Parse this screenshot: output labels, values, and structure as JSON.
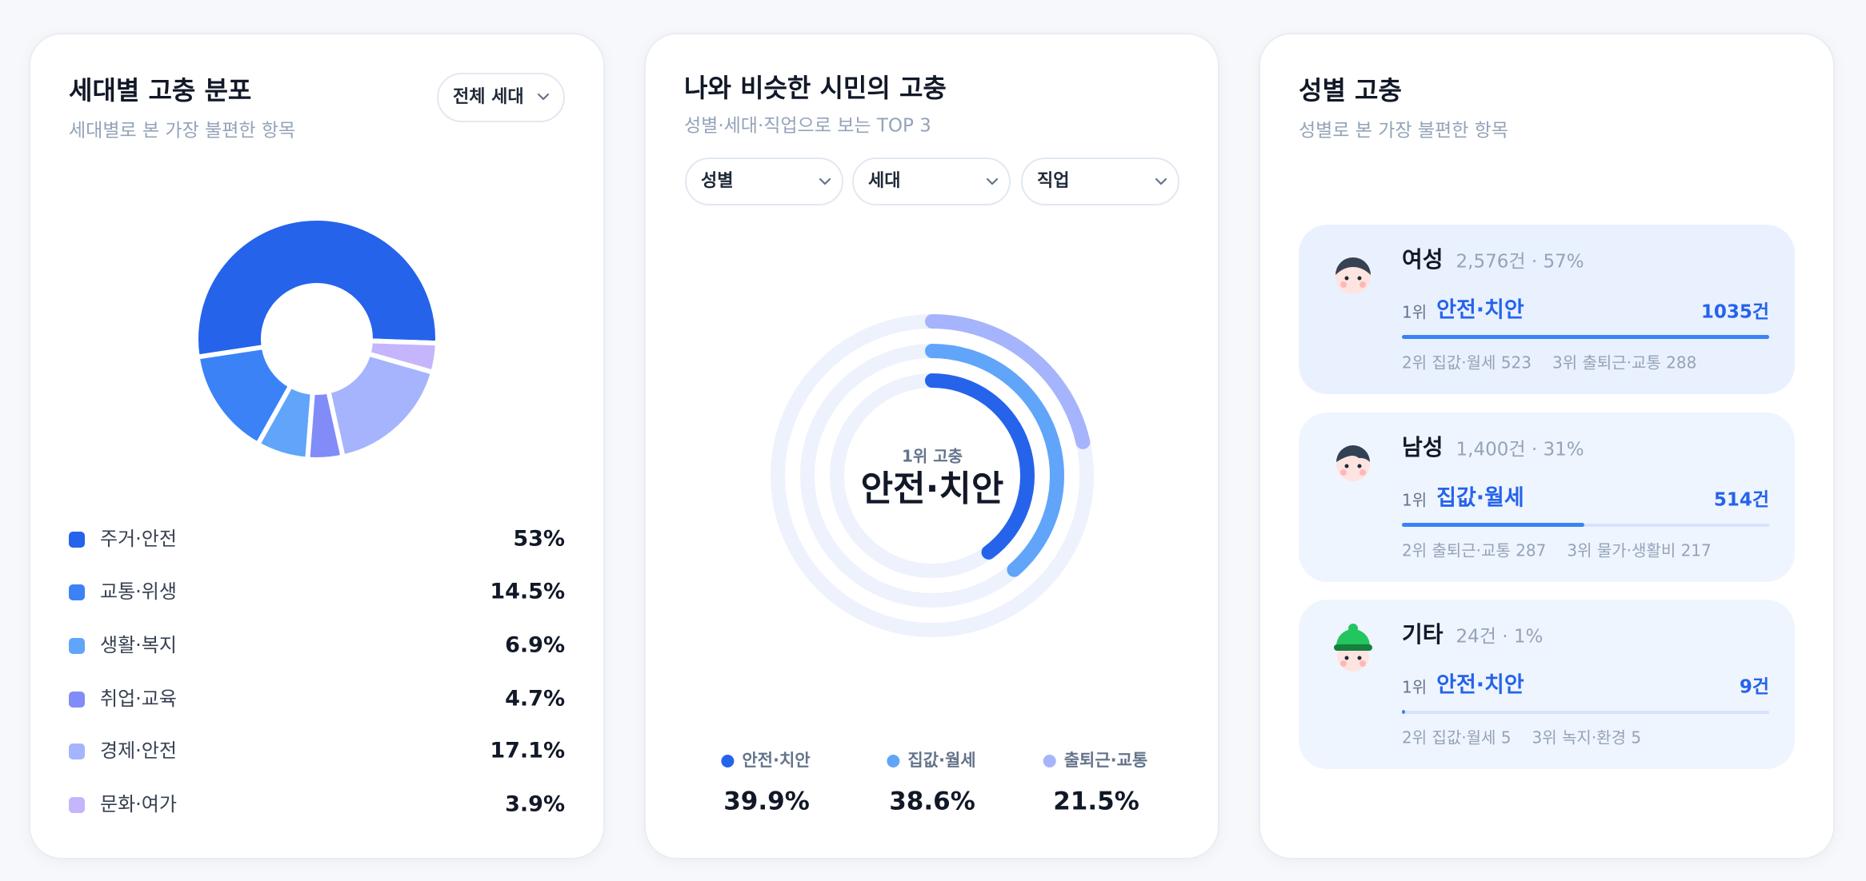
{
  "generation_card": {
    "title": "세대별 고충 분포",
    "subtitle": "세대별로 본 가장 불편한 항목",
    "dropdown": "전체 세대",
    "categories": [
      "주거·안전",
      "교통·위생",
      "생활·복지",
      "취업·교육",
      "경제·안전",
      "문화·여가"
    ],
    "values": [
      53,
      14.5,
      6.9,
      4.7,
      17.1,
      3.9
    ],
    "value_labels": [
      "53%",
      "14.5%",
      "6.9%",
      "4.7%",
      "17.1%",
      "3.9%"
    ],
    "colors": [
      "#2563eb",
      "#3b82f6",
      "#60a5fa",
      "#818cf8",
      "#a5b4fc",
      "#c4b5fd"
    ]
  },
  "similar_card": {
    "title": "나와 비슷한 시민의 고충",
    "subtitle": "성별·세대·직업으로 보는 TOP 3",
    "filters": [
      "성별",
      "세대",
      "직업"
    ],
    "center_label": "1위 고충",
    "center_value": "안전·치안",
    "categories": [
      "안전·치안",
      "집값·월세",
      "출퇴근·교통"
    ],
    "values": [
      39.9,
      38.6,
      21.5
    ],
    "value_labels": [
      "39.9%",
      "38.6%",
      "21.5%"
    ],
    "colors": [
      "#2563eb",
      "#60a5fa",
      "#a5b4fc"
    ]
  },
  "gender_card": {
    "title": "성별 고충",
    "subtitle": "성별로 본 가장 불편한 항목",
    "items": [
      {
        "name": "여성",
        "meta": "2,576건 · 57%",
        "rank": "1위",
        "top": "안전·치안",
        "count": {
          "value": 1035,
          "label": "1035건"
        },
        "others": [
          "2위 집값·월세 523",
          "3위 출퇴근·교통 288"
        ]
      },
      {
        "name": "남성",
        "meta": "1,400건 · 31%",
        "rank": "1위",
        "top": "집값·월세",
        "count": {
          "value": 514,
          "label": "514건"
        },
        "others": [
          "2위 출퇴근·교통 287",
          "3위 물가·생활비 217"
        ]
      },
      {
        "name": "기타",
        "meta": "24건 · 1%",
        "rank": "1위",
        "top": "안전·치안",
        "count": {
          "value": 9,
          "label": "9건"
        },
        "others": [
          "2위 집값·월세 5",
          "3위 녹지·환경 5"
        ]
      }
    ]
  }
}
